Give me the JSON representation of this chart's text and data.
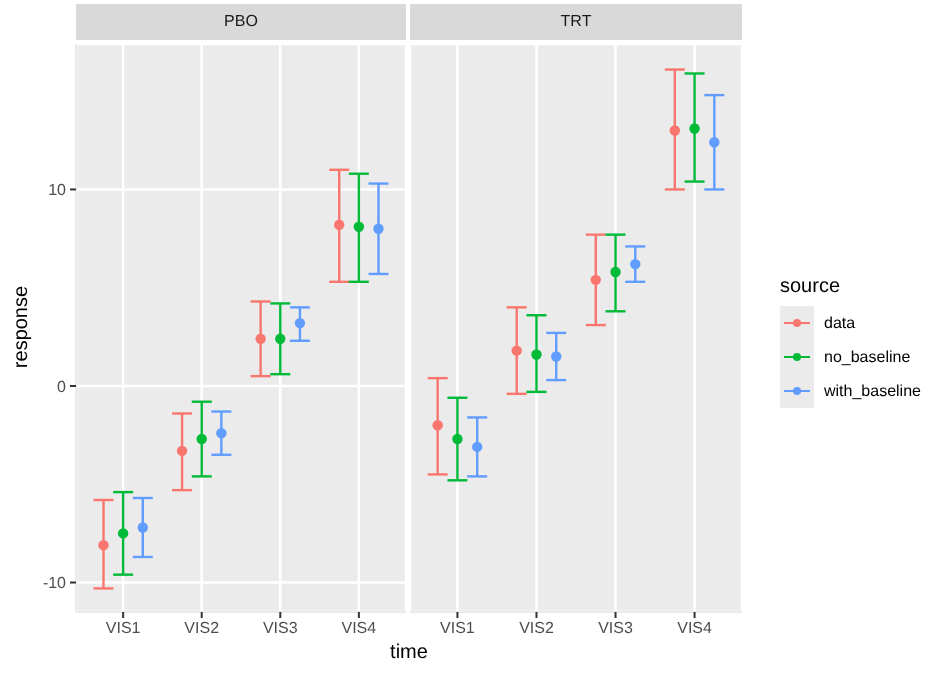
{
  "chart_data": [
    {
      "type": "scatter",
      "title": "PBO",
      "xlabel": "time",
      "ylabel": "response",
      "legend_title": "source",
      "legend": "right",
      "categories": [
        "VIS1",
        "VIS2",
        "VIS3",
        "VIS4"
      ],
      "ylim": [
        -11.5,
        17.4
      ],
      "yticks": [
        -10,
        0,
        10
      ],
      "grid": true,
      "marker": "circle",
      "series": [
        {
          "name": "data",
          "color": "#f8766d",
          "values": [
            -8.1,
            -3.3,
            2.4,
            8.2
          ],
          "errors": [
            [
              -10.3,
              -5.8
            ],
            [
              -5.3,
              -1.4
            ],
            [
              0.5,
              4.3
            ],
            [
              5.3,
              11.0
            ]
          ]
        },
        {
          "name": "no_baseline",
          "color": "#00ba38",
          "values": [
            -7.5,
            -2.7,
            2.4,
            8.1
          ],
          "errors": [
            [
              -9.6,
              -5.4
            ],
            [
              -4.6,
              -0.8
            ],
            [
              0.6,
              4.2
            ],
            [
              5.3,
              10.8
            ]
          ]
        },
        {
          "name": "with_baseline",
          "color": "#619cff",
          "values": [
            -7.2,
            -2.4,
            3.2,
            8.0
          ],
          "errors": [
            [
              -8.7,
              -5.7
            ],
            [
              -3.5,
              -1.3
            ],
            [
              2.3,
              4.0
            ],
            [
              5.7,
              10.3
            ]
          ]
        }
      ]
    },
    {
      "type": "scatter",
      "title": "TRT",
      "categories": [
        "VIS1",
        "VIS2",
        "VIS3",
        "VIS4"
      ],
      "ylim": [
        -11.5,
        17.4
      ],
      "yticks": [
        -10,
        0,
        10
      ],
      "tick_labels": "x",
      "grid": true,
      "marker": "circle",
      "series": [
        {
          "color": "#f8766d",
          "values": [
            -2.0,
            1.8,
            5.4,
            13.0
          ],
          "errors": [
            [
              -4.5,
              0.4
            ],
            [
              -0.4,
              4.0
            ],
            [
              3.1,
              7.7
            ],
            [
              10.0,
              16.1
            ]
          ]
        },
        {
          "color": "#00ba38",
          "values": [
            -2.7,
            1.6,
            5.8,
            13.1
          ],
          "errors": [
            [
              -4.8,
              -0.6
            ],
            [
              -0.3,
              3.6
            ],
            [
              3.8,
              7.7
            ],
            [
              10.4,
              15.9
            ]
          ]
        },
        {
          "color": "#619cff",
          "values": [
            -3.1,
            1.5,
            6.2,
            12.4
          ],
          "errors": [
            [
              -4.6,
              -1.6
            ],
            [
              0.3,
              2.7
            ],
            [
              5.3,
              7.1
            ],
            [
              10.0,
              14.8
            ]
          ]
        }
      ]
    }
  ]
}
